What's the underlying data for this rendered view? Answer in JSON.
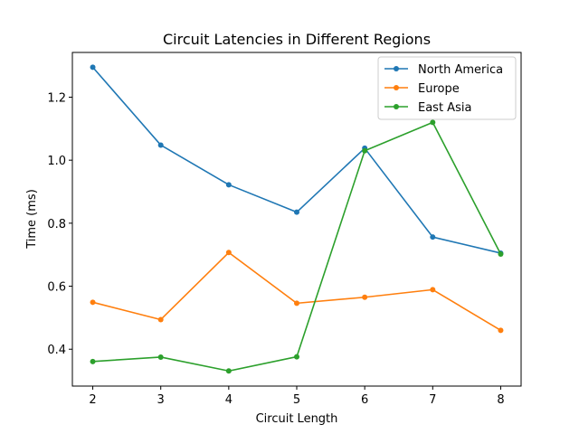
{
  "chart_data": {
    "type": "line",
    "title": "Circuit Latencies in Different Regions",
    "xlabel": "Circuit Length",
    "ylabel": "Time (ms)",
    "x": [
      2,
      3,
      4,
      5,
      6,
      7,
      8
    ],
    "xlim": [
      1.7,
      8.3
    ],
    "ylim": [
      0.283,
      1.342
    ],
    "xticks": [
      2,
      3,
      4,
      5,
      6,
      7,
      8
    ],
    "yticks": [
      0.4,
      0.6,
      0.8,
      1.0,
      1.2
    ],
    "ytick_labels": [
      "0.4",
      "0.6",
      "0.8",
      "1.0",
      "1.2"
    ],
    "grid": false,
    "legend_position": "top-right",
    "series": [
      {
        "name": "North America",
        "color": "#1f77b4",
        "values": [
          1.295,
          1.048,
          0.922,
          0.835,
          1.038,
          0.756,
          0.705
        ]
      },
      {
        "name": "Europe",
        "color": "#ff7f0e",
        "values": [
          0.549,
          0.494,
          0.707,
          0.546,
          0.565,
          0.589,
          0.46
        ]
      },
      {
        "name": "East Asia",
        "color": "#2ca02c",
        "values": [
          0.361,
          0.375,
          0.331,
          0.376,
          1.03,
          1.12,
          0.702
        ]
      }
    ]
  }
}
